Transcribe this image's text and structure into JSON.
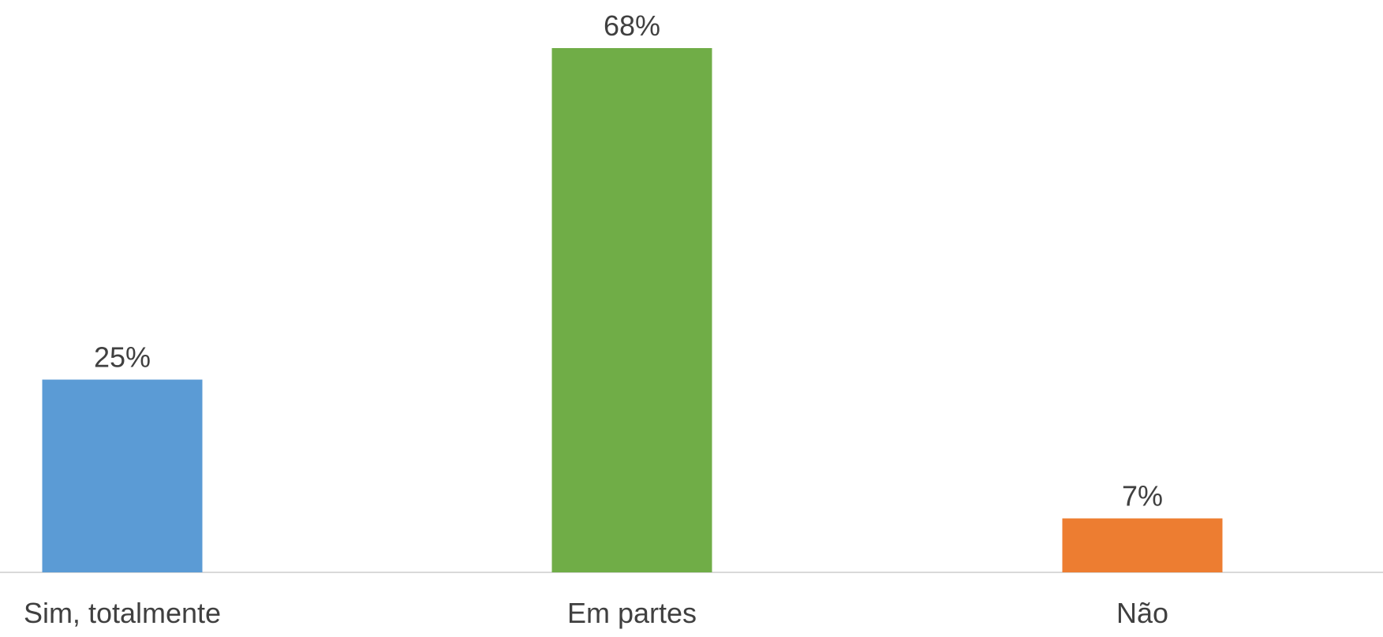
{
  "chart_data": {
    "type": "bar",
    "categories": [
      "Sim, totalmente",
      "Em partes",
      "Não"
    ],
    "values": [
      25,
      68,
      7
    ],
    "value_labels": [
      "25%",
      "68%",
      "7%"
    ],
    "unit": "%",
    "colors": [
      "#5B9BD5",
      "#70AD47",
      "#ED7D31"
    ],
    "title": "",
    "xlabel": "",
    "ylabel": "",
    "ylim": [
      0,
      68
    ],
    "grid": false,
    "legend": "none",
    "axis_color": "#D9D9D9",
    "text_color": "#404040"
  }
}
